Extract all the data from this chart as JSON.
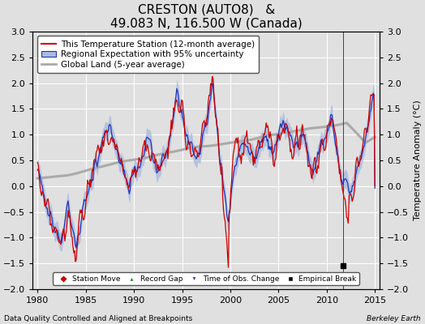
{
  "title": "CRESTON (AUTO8)   &",
  "subtitle": "49.083 N, 116.500 W (Canada)",
  "ylabel": "Temperature Anomaly (°C)",
  "xlabel_bottom": "Data Quality Controlled and Aligned at Breakpoints",
  "xlabel_right": "Berkeley Earth",
  "ylim": [
    -2.0,
    3.0
  ],
  "xlim": [
    1979.5,
    2015.5
  ],
  "yticks": [
    -2.0,
    -1.5,
    -1.0,
    -0.5,
    0.0,
    0.5,
    1.0,
    1.5,
    2.0,
    2.5,
    3.0
  ],
  "xticks": [
    1980,
    1985,
    1990,
    1995,
    2000,
    2005,
    2010,
    2015
  ],
  "bg_color": "#e0e0e0",
  "plot_bg_color": "#e0e0e0",
  "grid_color": "#ffffff",
  "station_color": "#cc0000",
  "regional_color": "#2233bb",
  "regional_fill_color": "#aabbdd",
  "global_color": "#aaaaaa",
  "vline_color": "#444444",
  "vline_x": 2011.7,
  "title_fontsize": 11,
  "subtitle_fontsize": 9,
  "legend_fontsize": 7.5,
  "tick_fontsize": 8,
  "ylabel_fontsize": 8,
  "empirical_break_x": 2011.7,
  "empirical_break_y": -1.55
}
